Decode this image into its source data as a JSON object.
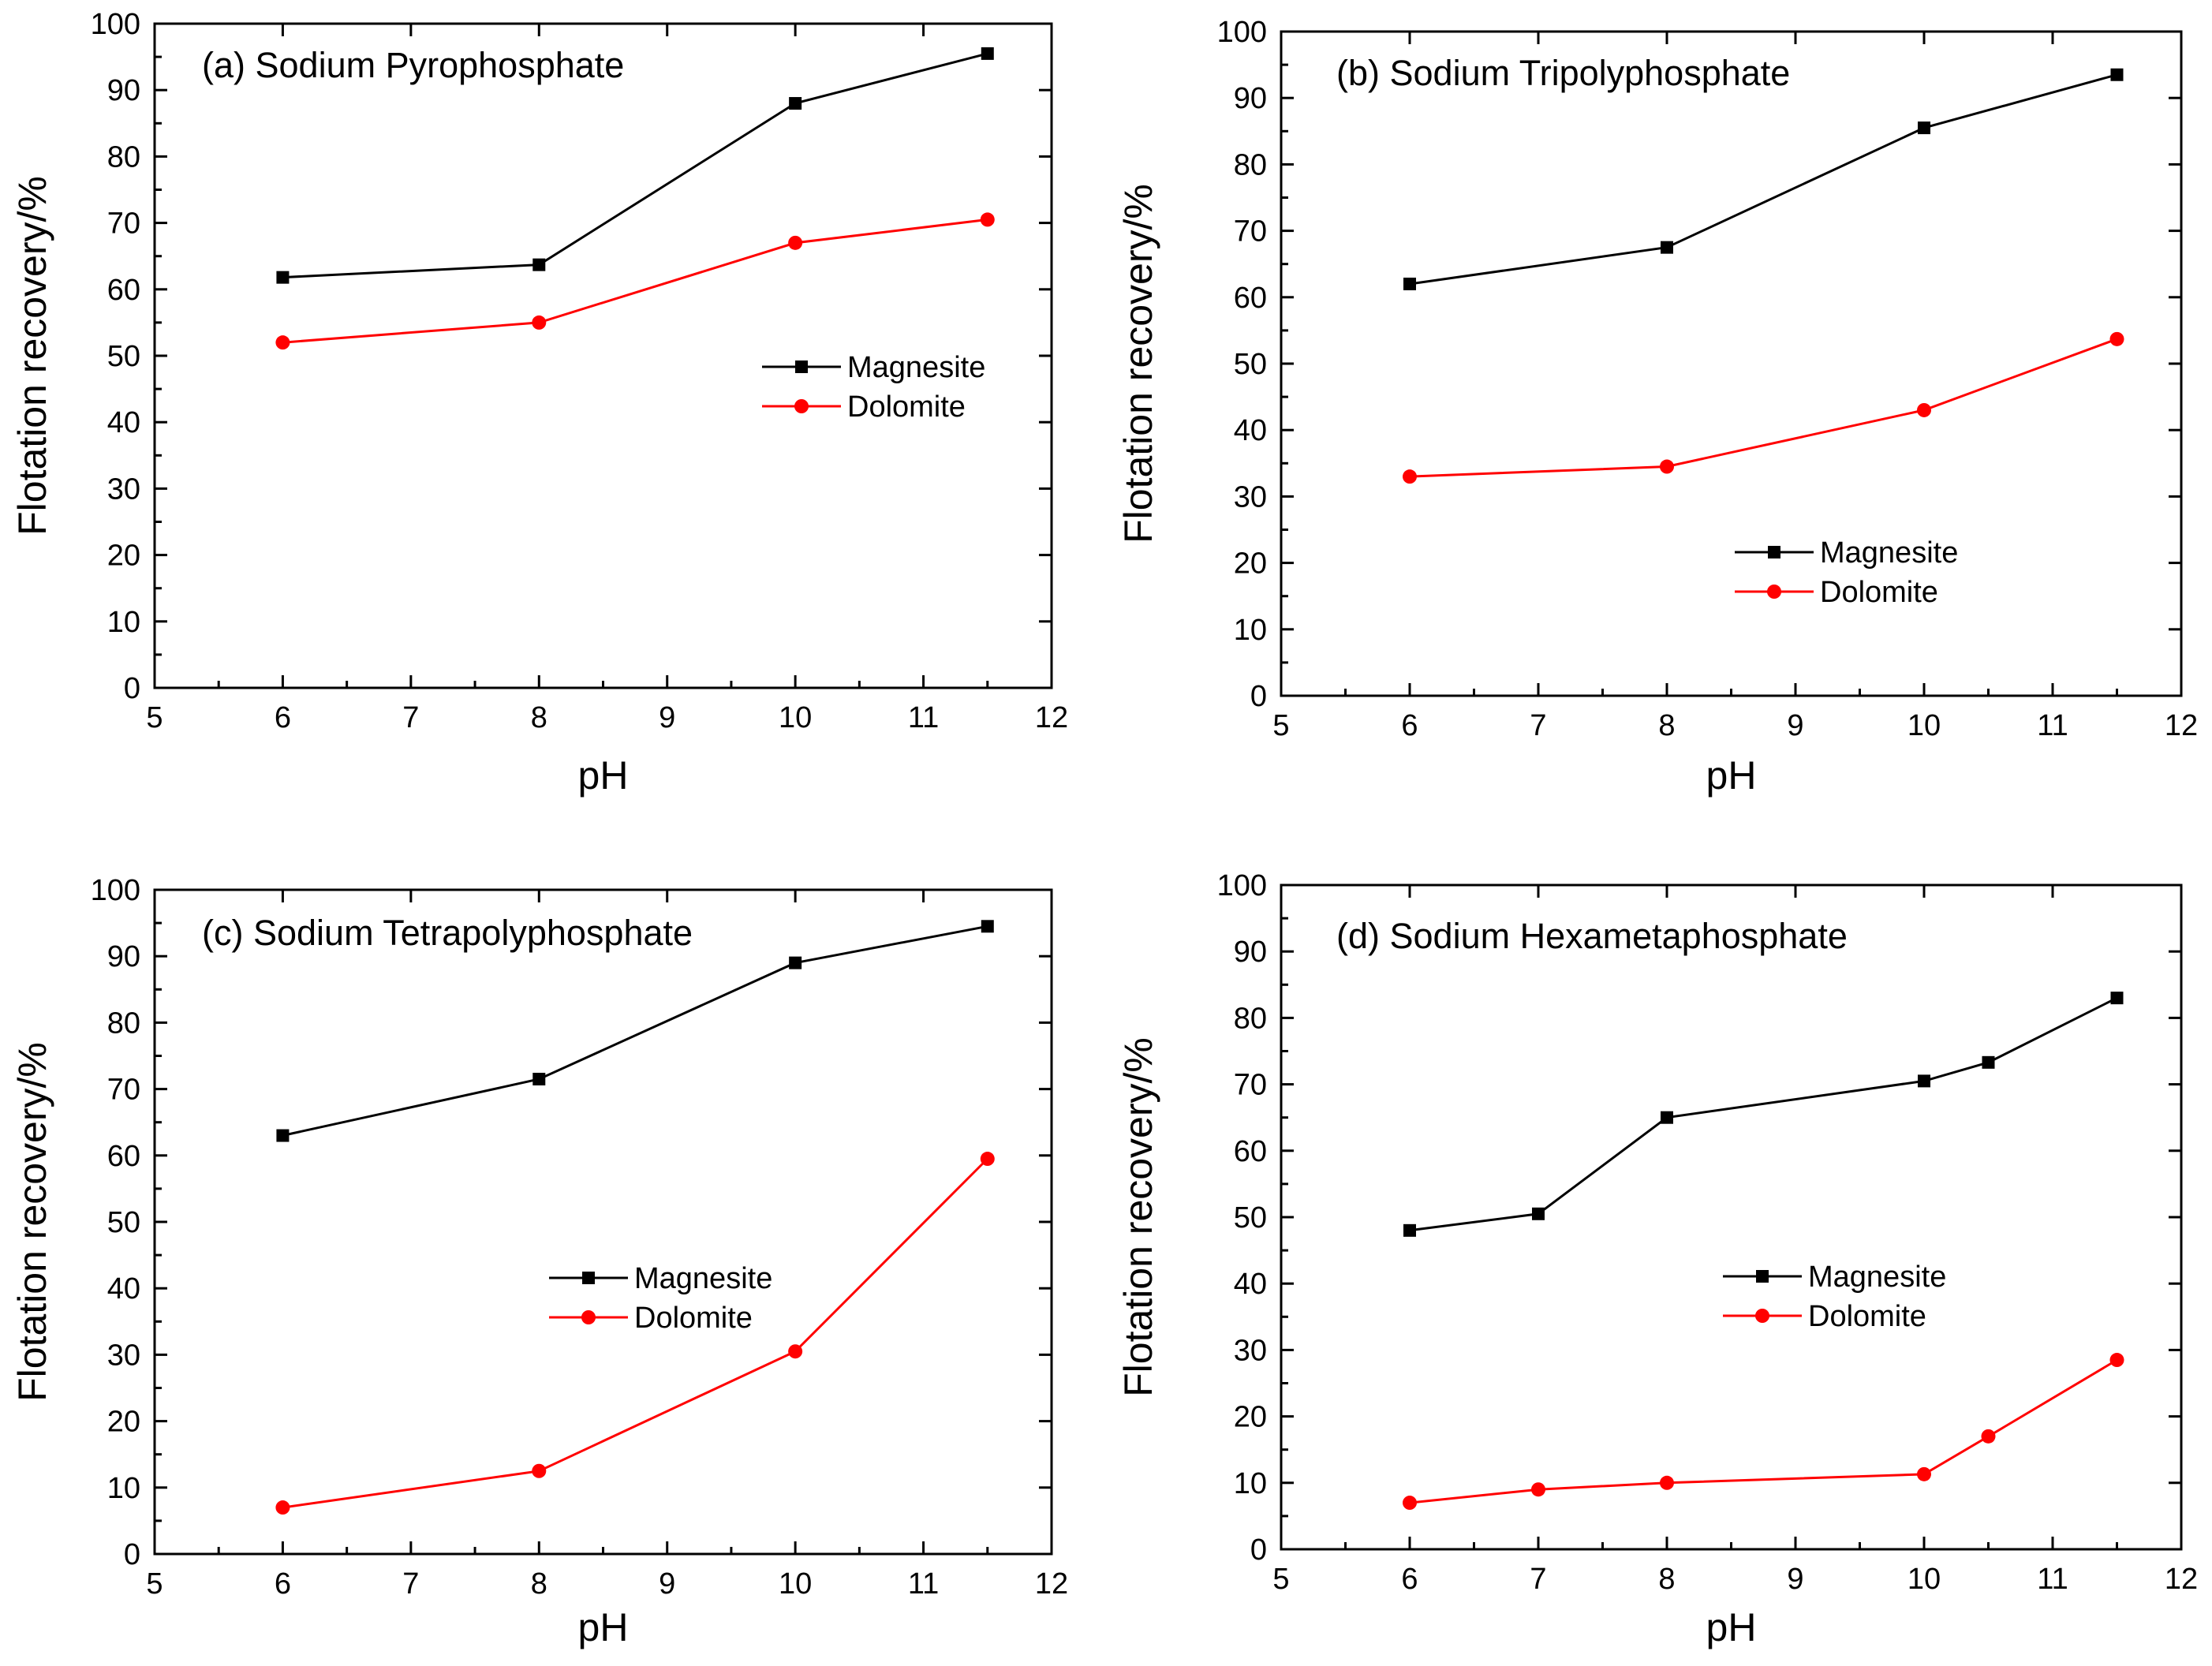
{
  "chart_data": [
    {
      "type": "line",
      "title": "(a) Sodium Pyrophosphate",
      "xlabel": "pH",
      "ylabel": "Flotation recovery/%",
      "xlim": [
        5,
        12
      ],
      "ylim": [
        0,
        100
      ],
      "xticks": [
        "5",
        "6",
        "7",
        "8",
        "9",
        "10",
        "11",
        "12"
      ],
      "yticks": [
        "0",
        "10",
        "20",
        "30",
        "40",
        "50",
        "60",
        "70",
        "80",
        "90",
        "100"
      ],
      "grid": false,
      "legend_position": "center-right",
      "series": [
        {
          "name": "Magnesite",
          "color": "#000000",
          "marker": "square",
          "x": [
            6,
            8,
            10,
            11.5
          ],
          "y": [
            61.8,
            63.7,
            88.0,
            95.5
          ]
        },
        {
          "name": "Dolomite",
          "color": "#ff0000",
          "marker": "circle",
          "x": [
            6,
            8,
            10,
            11.5
          ],
          "y": [
            52.0,
            55.0,
            67.0,
            70.5
          ]
        }
      ]
    },
    {
      "type": "line",
      "title": "(b) Sodium Tripolyphosphate",
      "xlabel": "pH",
      "ylabel": "Flotation recovery/%",
      "xlim": [
        5,
        12
      ],
      "ylim": [
        0,
        100
      ],
      "xticks": [
        "5",
        "6",
        "7",
        "8",
        "9",
        "10",
        "11",
        "12"
      ],
      "yticks": [
        "0",
        "10",
        "20",
        "30",
        "40",
        "50",
        "60",
        "70",
        "80",
        "90",
        "100"
      ],
      "grid": false,
      "legend_position": "lower-right",
      "series": [
        {
          "name": "Magnesite",
          "color": "#000000",
          "marker": "square",
          "x": [
            6,
            8,
            10,
            11.5
          ],
          "y": [
            62.0,
            67.5,
            85.5,
            93.5
          ]
        },
        {
          "name": "Dolomite",
          "color": "#ff0000",
          "marker": "circle",
          "x": [
            6,
            8,
            10,
            11.5
          ],
          "y": [
            33.0,
            34.5,
            43.0,
            53.7
          ]
        }
      ]
    },
    {
      "type": "line",
      "title": "(c) Sodium Tetrapolyphosphate",
      "xlabel": "pH",
      "ylabel": "Flotation recovery/%",
      "xlim": [
        5,
        12
      ],
      "ylim": [
        0,
        100
      ],
      "xticks": [
        "5",
        "6",
        "7",
        "8",
        "9",
        "10",
        "11",
        "12"
      ],
      "yticks": [
        "0",
        "10",
        "20",
        "30",
        "40",
        "50",
        "60",
        "70",
        "80",
        "90",
        "100"
      ],
      "grid": false,
      "legend_position": "center",
      "series": [
        {
          "name": "Magnesite",
          "color": "#000000",
          "marker": "square",
          "x": [
            6,
            8,
            10,
            11.5
          ],
          "y": [
            63.0,
            71.5,
            89.0,
            94.5
          ]
        },
        {
          "name": "Dolomite",
          "color": "#ff0000",
          "marker": "circle",
          "x": [
            6,
            8,
            10,
            11.5
          ],
          "y": [
            7.0,
            12.5,
            30.5,
            59.5
          ]
        }
      ]
    },
    {
      "type": "line",
      "title": "(d) Sodium Hexametaphosphate",
      "xlabel": "pH",
      "ylabel": "Flotation recovery/%",
      "xlim": [
        5,
        12
      ],
      "ylim": [
        0,
        100
      ],
      "xticks": [
        "5",
        "6",
        "7",
        "8",
        "9",
        "10",
        "11",
        "12"
      ],
      "yticks": [
        "0",
        "10",
        "20",
        "30",
        "40",
        "50",
        "60",
        "70",
        "80",
        "90",
        "100"
      ],
      "grid": false,
      "legend_position": "center-right",
      "series": [
        {
          "name": "Magnesite",
          "color": "#000000",
          "marker": "square",
          "x": [
            6,
            7,
            8,
            10,
            10.5,
            11.5
          ],
          "y": [
            48.0,
            50.5,
            65.0,
            70.5,
            73.3,
            83.0
          ]
        },
        {
          "name": "Dolomite",
          "color": "#ff0000",
          "marker": "circle",
          "x": [
            6,
            7,
            8,
            10,
            10.5,
            11.5
          ],
          "y": [
            7.0,
            9.0,
            10.0,
            11.3,
            17.0,
            28.5
          ]
        }
      ]
    }
  ]
}
